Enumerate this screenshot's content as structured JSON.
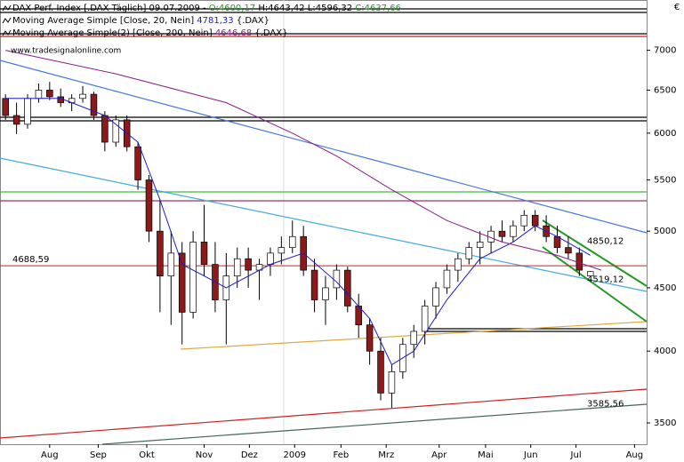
{
  "chart_data": {
    "type": "candlestick",
    "legend": [
      [
        "DAX Perf. Index [.DAX  Täglich] 09.07.2009 - ",
        "O:4600,17",
        " H:4643,42 L:4596,32 ",
        "C:4637,66"
      ],
      [
        "Moving Average Simple [Close, 20, Nein] ",
        "4781,33",
        " {.DAX}"
      ],
      [
        "Moving Average Simple(2) [Close, 200, Nein] ",
        "4646,68",
        " {.DAX}"
      ]
    ],
    "currency": "€",
    "watermark": "www.tradesignalonline.com",
    "log_scale": true,
    "ylim": [
      3364,
      7686
    ],
    "yticks": [
      3500,
      4000,
      4500,
      5000,
      5500,
      6000,
      6500,
      7000
    ],
    "xlim": [
      -0.5,
      58.1
    ],
    "xticks": [
      {
        "value": 4,
        "label": "Aug"
      },
      {
        "value": 8.4,
        "label": "Sep"
      },
      {
        "value": 12.8,
        "label": "Okt"
      },
      {
        "value": 18,
        "label": "Nov"
      },
      {
        "value": 22.1,
        "label": "Dez"
      },
      {
        "value": 26.2,
        "label": "2009"
      },
      {
        "value": 30.4,
        "label": "Feb"
      },
      {
        "value": 34.5,
        "label": "Mrz"
      },
      {
        "value": 39.3,
        "label": "Apr"
      },
      {
        "value": 43.5,
        "label": "Mai"
      },
      {
        "value": 47.6,
        "label": "Jun"
      },
      {
        "value": 51.7,
        "label": "Jul"
      },
      {
        "value": 57,
        "label": "Aug"
      }
    ],
    "up_color": "#ffffff",
    "down_color": "#8b1a1a",
    "x": [
      0,
      1,
      2,
      3,
      4,
      5,
      6,
      7,
      8,
      9,
      10,
      11,
      12,
      13,
      14,
      15,
      16,
      17,
      18,
      19,
      20,
      21,
      22,
      23,
      24,
      25,
      26,
      27,
      28,
      29,
      30,
      31,
      32,
      33,
      34,
      35,
      36,
      37,
      38,
      39,
      40,
      41,
      42,
      43,
      44,
      45,
      46,
      47,
      48,
      49,
      50,
      51,
      52,
      53
    ],
    "open": [
      6400,
      6200,
      6100,
      6400,
      6500,
      6420,
      6350,
      6400,
      6450,
      6200,
      5900,
      6150,
      5850,
      5500,
      5000,
      4600,
      4800,
      4300,
      4900,
      4700,
      4400,
      4600,
      4750,
      4650,
      4700,
      4800,
      4850,
      4950,
      4650,
      4400,
      4500,
      4650,
      4350,
      4200,
      4000,
      3700,
      3850,
      4050,
      4150,
      4350,
      4500,
      4650,
      4750,
      4850,
      4900,
      5000,
      4950,
      5050,
      5150,
      5050,
      4950,
      4850,
      4800,
      4600.17
    ],
    "high": [
      6450,
      6350,
      6450,
      6580,
      6600,
      6520,
      6450,
      6550,
      6480,
      6250,
      6200,
      6200,
      5900,
      5550,
      5300,
      5000,
      4900,
      5000,
      5250,
      4900,
      4800,
      4850,
      4850,
      4750,
      4850,
      4950,
      5100,
      5050,
      4750,
      4600,
      4700,
      4680,
      4450,
      4250,
      4100,
      3900,
      4100,
      4200,
      4400,
      4550,
      4700,
      4800,
      4900,
      5000,
      5050,
      5100,
      5100,
      5200,
      5200,
      5150,
      5050,
      4950,
      4850,
      4643.42
    ],
    "low": [
      6150,
      5990,
      6050,
      6350,
      6380,
      6300,
      6250,
      6350,
      6150,
      5800,
      5850,
      5800,
      5400,
      4900,
      4300,
      4200,
      4050,
      4250,
      4600,
      4300,
      4050,
      4500,
      4500,
      4400,
      4600,
      4700,
      4800,
      4600,
      4300,
      4200,
      4400,
      4300,
      4100,
      3900,
      3650,
      3600,
      3800,
      3950,
      4050,
      4250,
      4450,
      4550,
      4700,
      4700,
      4800,
      4900,
      4900,
      5000,
      5000,
      4900,
      4800,
      4750,
      4600,
      4596.32
    ],
    "close": [
      6200,
      6100,
      6400,
      6500,
      6420,
      6350,
      6400,
      6450,
      6200,
      5900,
      6150,
      5850,
      5500,
      5000,
      4600,
      4800,
      4300,
      4900,
      4700,
      4400,
      4600,
      4750,
      4650,
      4700,
      4800,
      4850,
      4950,
      4650,
      4400,
      4500,
      4650,
      4350,
      4200,
      4000,
      3700,
      3850,
      4050,
      4150,
      4350,
      4500,
      4650,
      4750,
      4850,
      4900,
      5000,
      4950,
      5050,
      5150,
      5050,
      4950,
      4850,
      4800,
      4650,
      4637.66
    ],
    "series": [
      {
        "name": "Moving Average Simple [Close, 20, Nein]",
        "color": "#1a1acc",
        "x": [
          0,
          5,
          9,
          12,
          14,
          16,
          18,
          20,
          24,
          27,
          30,
          33,
          35,
          37,
          40,
          43,
          46,
          48,
          50,
          53
        ],
        "values": [
          6400,
          6400,
          6200,
          5900,
          5300,
          4700,
          4600,
          4500,
          4700,
          4800,
          4550,
          4250,
          3900,
          4000,
          4400,
          4750,
          4900,
          5050,
          4950,
          4781
        ]
      },
      {
        "name": "Moving Average Simple(2) [Close, 200, Nein]",
        "color": "#8b1a8b",
        "x": [
          0,
          10,
          20,
          26,
          30,
          35,
          40,
          45,
          50,
          54
        ],
        "values": [
          7000,
          6700,
          6350,
          6000,
          5750,
          5400,
          5100,
          4900,
          4780,
          4650
        ]
      }
    ],
    "annotations": [
      {
        "value": 4688.59,
        "label": "4688,59",
        "color": "#cc2222"
      },
      {
        "value": 4850.12,
        "label": "4850,12",
        "color": "#229922"
      },
      {
        "value": 4519.12,
        "label": "4519,12",
        "color": "#229922"
      },
      {
        "value": 3585.56,
        "label": "3585,56",
        "color": "#555555"
      }
    ]
  }
}
